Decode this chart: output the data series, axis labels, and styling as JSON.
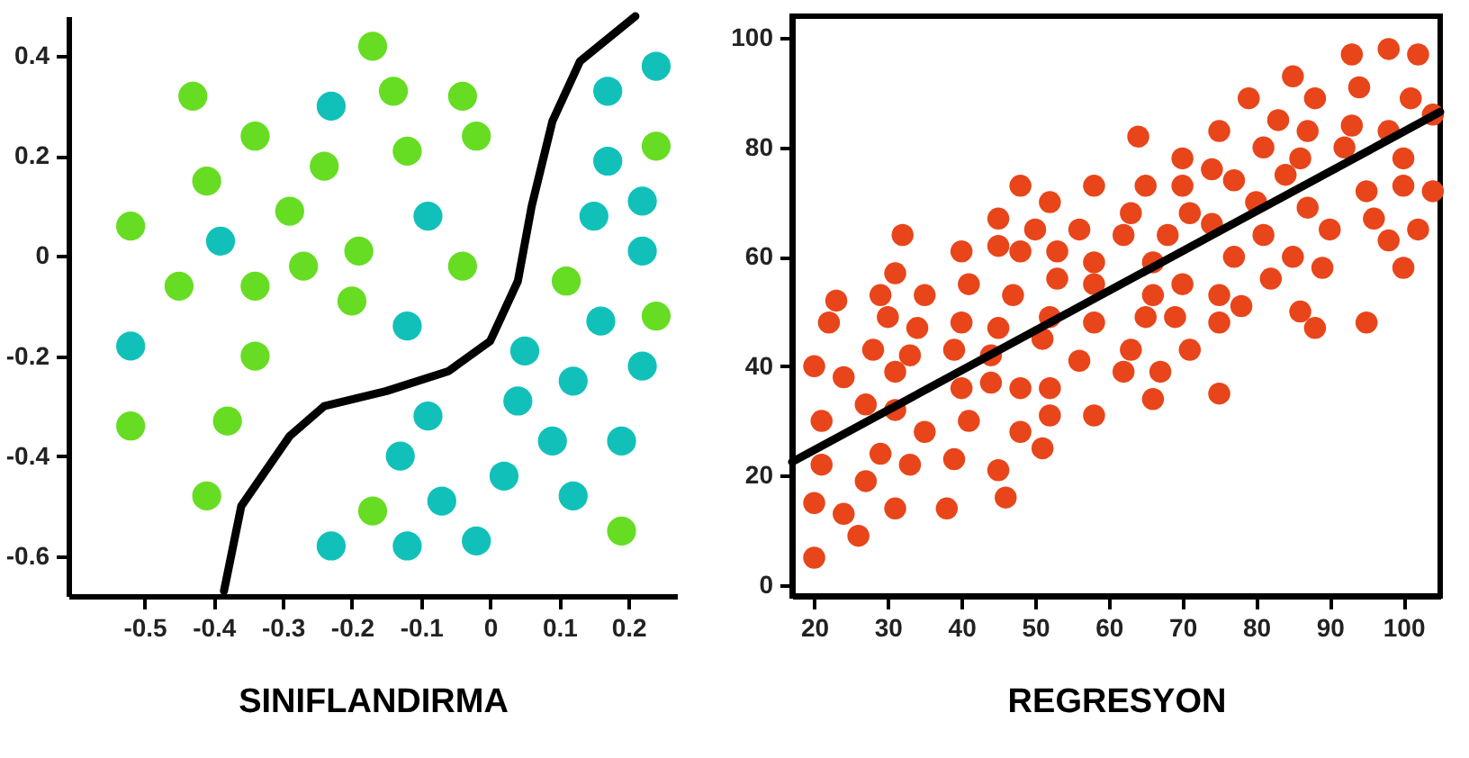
{
  "chart_data": [
    {
      "type": "scatter",
      "xlabel": "SINIFLANDIRMA",
      "xlim": [
        -0.61,
        0.27
      ],
      "ylim": [
        -0.68,
        0.48
      ],
      "xticks": [
        -0.5,
        -0.4,
        -0.3,
        -0.2,
        -0.1,
        0,
        0.1,
        0.2
      ],
      "yticks": [
        -0.6,
        -0.4,
        -0.2,
        0,
        0.2,
        0.4
      ],
      "grid": false,
      "series": [
        {
          "color": "#66dd22",
          "x": [
            -0.43,
            -0.34,
            -0.41,
            -0.52,
            -0.29,
            -0.27,
            -0.45,
            -0.34,
            -0.34,
            -0.52,
            -0.38,
            -0.41,
            -0.24,
            -0.19,
            -0.2,
            -0.17,
            -0.14,
            -0.04,
            -0.02,
            -0.12,
            -0.04,
            0.11,
            0.24,
            0.24,
            -0.17,
            0.19
          ],
          "values": [
            0.32,
            0.24,
            0.15,
            0.06,
            0.09,
            -0.02,
            -0.06,
            -0.06,
            -0.2,
            -0.34,
            -0.33,
            -0.48,
            0.18,
            0.01,
            -0.09,
            0.42,
            0.33,
            0.32,
            0.24,
            0.21,
            -0.02,
            -0.05,
            -0.12,
            0.22,
            -0.51,
            -0.55
          ]
        },
        {
          "color": "#11c1b9",
          "x": [
            -0.23,
            -0.39,
            -0.52,
            -0.23,
            0.24,
            0.17,
            0.17,
            0.22,
            0.15,
            0.22,
            -0.09,
            -0.12,
            0.16,
            0.05,
            0.22,
            0.12,
            0.04,
            -0.09,
            0.09,
            0.19,
            -0.13,
            0.02,
            -0.07,
            0.12,
            -0.02,
            -0.12
          ],
          "values": [
            0.3,
            0.03,
            -0.18,
            -0.58,
            0.38,
            0.33,
            0.19,
            0.11,
            0.08,
            0.01,
            0.08,
            -0.14,
            -0.13,
            -0.19,
            -0.22,
            -0.25,
            -0.29,
            -0.32,
            -0.37,
            -0.37,
            -0.4,
            -0.44,
            -0.49,
            -0.48,
            -0.57,
            -0.58
          ]
        },
        {
          "type": "line",
          "color": "#000000",
          "marker": "none",
          "line_style": "solid",
          "x": [
            -0.385,
            -0.36,
            -0.29,
            -0.24,
            -0.15,
            -0.06,
            0,
            0.04,
            0.06,
            0.09,
            0.13,
            0.21
          ],
          "values": [
            -0.67,
            -0.5,
            -0.36,
            -0.3,
            -0.27,
            -0.23,
            -0.17,
            -0.05,
            0.1,
            0.27,
            0.39,
            0.48
          ]
        }
      ]
    },
    {
      "type": "scatter",
      "xlabel": "REGRESYON",
      "xlim": [
        17,
        105
      ],
      "ylim": [
        -2,
        104
      ],
      "xticks": [
        20,
        30,
        40,
        50,
        60,
        70,
        80,
        90,
        100
      ],
      "yticks": [
        0,
        20,
        40,
        60,
        80,
        100
      ],
      "grid": false,
      "series": [
        {
          "color": "#e8451a",
          "x": [
            20,
            21,
            21,
            20,
            20,
            22,
            23,
            24,
            24,
            28,
            27,
            27,
            26,
            29,
            30,
            31,
            32,
            31,
            31,
            29,
            31,
            33,
            34,
            35,
            35,
            33,
            38,
            39,
            40,
            40,
            41,
            40,
            41,
            39,
            45,
            45,
            45,
            44,
            44,
            45,
            46,
            48,
            48,
            47,
            48,
            48,
            50,
            52,
            53,
            53,
            52,
            51,
            52,
            52,
            51,
            56,
            56,
            58,
            58,
            58,
            58,
            58,
            64,
            65,
            63,
            62,
            66,
            66,
            65,
            63,
            62,
            66,
            70,
            70,
            71,
            68,
            70,
            69,
            71,
            67,
            75,
            75,
            74,
            77,
            74,
            77,
            75,
            75,
            78,
            79,
            81,
            80,
            81,
            82,
            83,
            84,
            85,
            86,
            87,
            85,
            86,
            88,
            87,
            88,
            90,
            89,
            92,
            93,
            93,
            94,
            95,
            96,
            98,
            95,
            98,
            98,
            100,
            101,
            102,
            100,
            102,
            100,
            104,
            104
          ],
          "values": [
            40,
            30,
            22,
            15,
            5,
            48,
            52,
            38,
            13,
            43,
            33,
            19,
            9,
            53,
            49,
            57,
            64,
            39,
            32,
            24,
            14,
            42,
            47,
            53,
            28,
            22,
            14,
            43,
            48,
            61,
            55,
            36,
            30,
            23,
            67,
            62,
            47,
            42,
            37,
            21,
            16,
            73,
            61,
            53,
            36,
            28,
            65,
            70,
            61,
            56,
            49,
            45,
            36,
            31,
            25,
            65,
            41,
            73,
            59,
            55,
            48,
            31,
            82,
            73,
            68,
            64,
            59,
            53,
            49,
            43,
            39,
            34,
            78,
            73,
            68,
            64,
            55,
            49,
            43,
            39,
            35,
            83,
            76,
            74,
            66,
            60,
            53,
            48,
            51,
            89,
            80,
            70,
            64,
            56,
            85,
            75,
            93,
            78,
            69,
            60,
            50,
            47,
            83,
            89,
            65,
            58,
            80,
            84,
            97,
            91,
            72,
            67,
            63,
            48,
            98,
            83,
            78,
            89,
            97,
            73,
            65,
            58,
            72,
            86
          ]
        },
        {
          "type": "line",
          "color": "#000000",
          "marker": "none",
          "line_style": "solid",
          "x": [
            17,
            105
          ],
          "values": [
            22.5,
            86.5
          ]
        }
      ]
    }
  ]
}
